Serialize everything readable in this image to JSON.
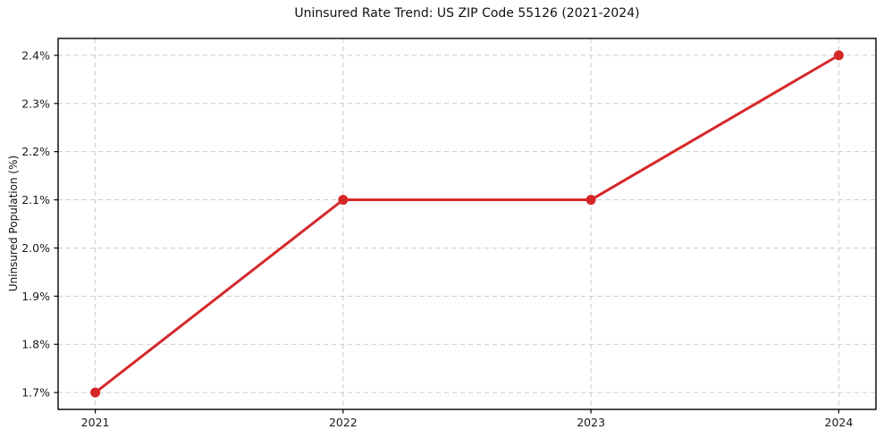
{
  "chart_data": {
    "type": "line",
    "title": "Uninsured Rate Trend: US ZIP Code 55126 (2021-2024)",
    "xlabel": "",
    "ylabel": "Uninsured Population (%)",
    "x": [
      2021,
      2022,
      2023,
      2024
    ],
    "values": [
      1.7,
      2.1,
      2.1,
      2.4
    ],
    "xticks": [
      2021,
      2022,
      2023,
      2024
    ],
    "yticks": [
      1.7,
      1.8,
      1.9,
      2.0,
      2.1,
      2.2,
      2.3,
      2.4
    ],
    "y_tick_suffix": "%",
    "xlim": [
      2020.85,
      2024.15
    ],
    "ylim": [
      1.665,
      2.435
    ],
    "grid": true,
    "legend": "none",
    "line_color": "#d62728",
    "marker": "circle",
    "grid_color": "#cccccc",
    "spine_color": "#000000",
    "text_color": "#1a1a1a",
    "background_color": "#ffffff"
  }
}
